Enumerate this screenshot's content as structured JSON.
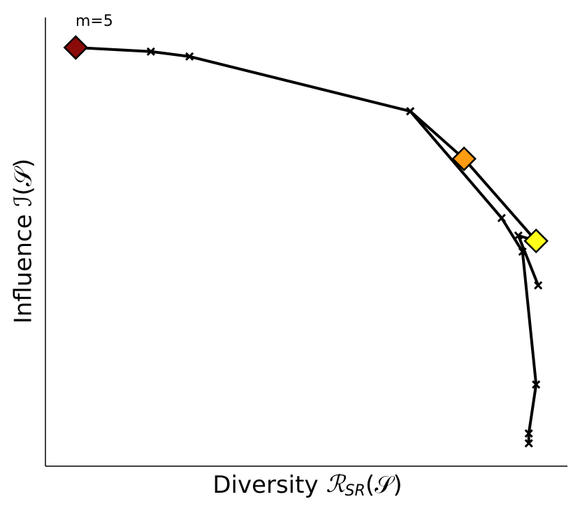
{
  "chart_data": {
    "type": "line",
    "annotation": "m=5",
    "x_label": {
      "text": "Diversity ",
      "symbol": "ℛ",
      "subscript": "SR",
      "argument": "(𝒮)"
    },
    "y_label": "Influence ℐ(𝒮)",
    "xlim": [
      0,
      100
    ],
    "ylim": [
      0,
      100
    ],
    "series": [
      {
        "color": "#000000",
        "marker": "x",
        "x": [
          5.8,
          20.2,
          27.6,
          69.9,
          80.2,
          94.0,
          90.6,
          94.4
        ],
        "values": [
          93.3,
          92.4,
          91.3,
          79.1,
          68.5,
          50.2,
          51.4,
          40.3
        ]
      },
      {
        "color": "#000000",
        "marker": "x",
        "x": [
          69.9,
          87.4,
          91.4,
          94.0,
          92.6,
          92.6
        ],
        "values": [
          79.1,
          55.3,
          47.8,
          18.2,
          7.3,
          5.1
        ]
      },
      {
        "color": "#000000",
        "marker": "diamond",
        "x": [
          5.8,
          80.2,
          94.0
        ],
        "values": [
          93.3,
          68.5,
          50.2
        ],
        "marker_colors": [
          "#8b0a0a",
          "#ff9c12",
          "#ffff1a"
        ]
      }
    ]
  }
}
